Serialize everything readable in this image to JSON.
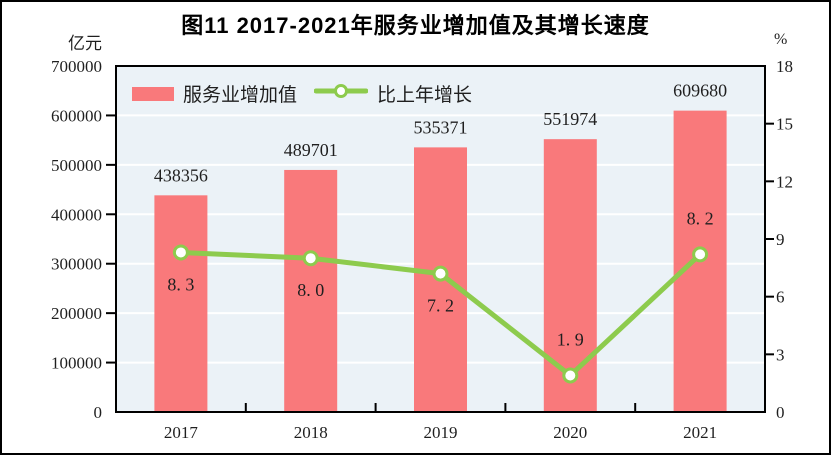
{
  "figure": {
    "title": "图11  2017-2021年服务业增加值及其增长速度",
    "unit_left": "亿元",
    "unit_right": "%"
  },
  "legend": {
    "bar_label": "服务业增加值",
    "line_label": "比上年增长"
  },
  "colors": {
    "bar": "#F9797B",
    "line": "#8DCB4D",
    "marker_fill": "#FFFFFF",
    "plot_bg": "#EBF2F7",
    "grid": "#FFFFFF",
    "axis": "#000000",
    "text": "#1F1F1F"
  },
  "chart_data": {
    "type": "bar+line",
    "title": "图11  2017-2021年服务业增加值及其增长速度",
    "categories": [
      "2017",
      "2018",
      "2019",
      "2020",
      "2021"
    ],
    "series": [
      {
        "name": "服务业增加值",
        "kind": "bar",
        "axis": "left",
        "unit": "亿元",
        "values": [
          438356,
          489701,
          535371,
          551974,
          609680
        ],
        "labels": [
          "438356",
          "489701",
          "535371",
          "551974",
          "609680"
        ]
      },
      {
        "name": "比上年增长",
        "kind": "line",
        "axis": "right",
        "unit": "%",
        "values": [
          8.3,
          8.0,
          7.2,
          1.9,
          8.2
        ],
        "labels": [
          "8. 3",
          "8. 0",
          "7. 2",
          "1. 9",
          "8. 2"
        ],
        "label_side": [
          "below",
          "below",
          "below",
          "above",
          "above"
        ]
      }
    ],
    "y_left": {
      "label": "亿元",
      "min": 0,
      "max": 700000,
      "step": 100000
    },
    "y_right": {
      "label": "%",
      "min": 0,
      "max": 18,
      "step": 3
    },
    "grid": true,
    "legend_position": "top-left-inside"
  }
}
